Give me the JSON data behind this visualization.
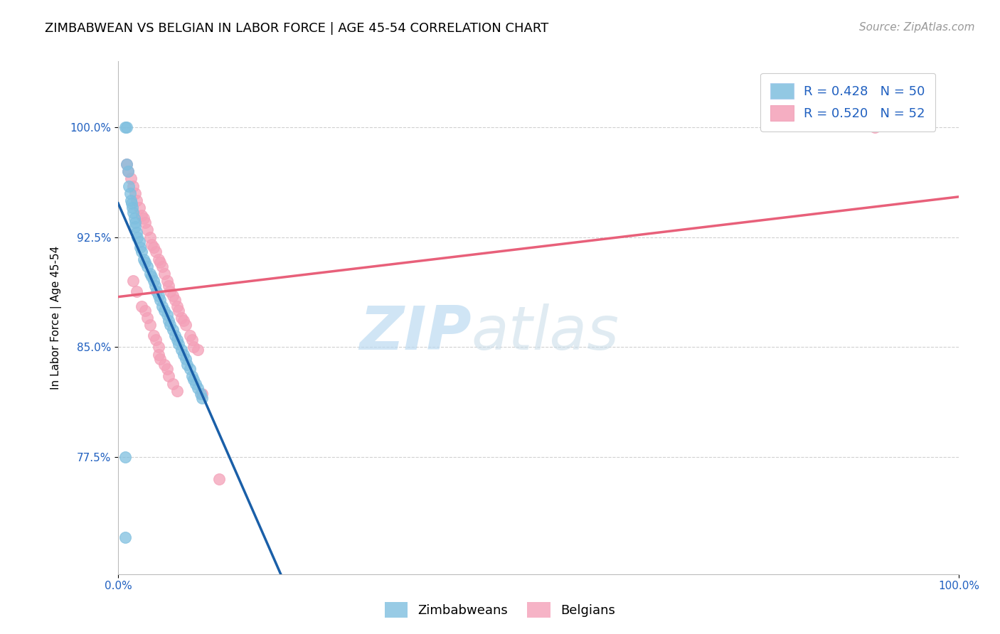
{
  "title": "ZIMBABWEAN VS BELGIAN IN LABOR FORCE | AGE 45-54 CORRELATION CHART",
  "source_text": "Source: ZipAtlas.com",
  "ylabel": "In Labor Force | Age 45-54",
  "x_tick_labels": [
    "0.0%",
    "100.0%"
  ],
  "y_tick_labels": [
    "77.5%",
    "85.0%",
    "92.5%",
    "100.0%"
  ],
  "xlim": [
    0.0,
    1.0
  ],
  "ylim": [
    0.695,
    1.045
  ],
  "y_ticks": [
    0.775,
    0.85,
    0.925,
    1.0
  ],
  "watermark_zip": "ZIP",
  "watermark_atlas": "atlas",
  "legend_r1": "R = 0.428",
  "legend_n1": "N = 50",
  "legend_r2": "R = 0.520",
  "legend_n2": "N = 52",
  "zim_color": "#7fbfdf",
  "bel_color": "#f4a0b8",
  "zim_line_color": "#1a5fa8",
  "bel_line_color": "#e8607a",
  "background_color": "#ffffff",
  "grid_color": "#d0d0d0",
  "zim_scatter_x": [
    0.008,
    0.01,
    0.01,
    0.012,
    0.013,
    0.014,
    0.015,
    0.016,
    0.017,
    0.018,
    0.019,
    0.02,
    0.02,
    0.022,
    0.023,
    0.025,
    0.026,
    0.028,
    0.03,
    0.032,
    0.035,
    0.038,
    0.04,
    0.042,
    0.044,
    0.046,
    0.048,
    0.05,
    0.052,
    0.055,
    0.058,
    0.06,
    0.062,
    0.065,
    0.068,
    0.07,
    0.072,
    0.075,
    0.078,
    0.08,
    0.082,
    0.085,
    0.088,
    0.09,
    0.092,
    0.095,
    0.098,
    0.1,
    0.008,
    0.008
  ],
  "zim_scatter_y": [
    1.0,
    1.0,
    0.975,
    0.97,
    0.96,
    0.955,
    0.95,
    0.948,
    0.945,
    0.942,
    0.938,
    0.935,
    0.932,
    0.928,
    0.925,
    0.922,
    0.918,
    0.915,
    0.91,
    0.908,
    0.905,
    0.9,
    0.898,
    0.895,
    0.892,
    0.888,
    0.885,
    0.882,
    0.878,
    0.875,
    0.872,
    0.868,
    0.865,
    0.862,
    0.858,
    0.855,
    0.852,
    0.848,
    0.845,
    0.842,
    0.838,
    0.835,
    0.83,
    0.828,
    0.825,
    0.822,
    0.818,
    0.815,
    0.775,
    0.72
  ],
  "bel_scatter_x": [
    0.01,
    0.012,
    0.015,
    0.018,
    0.02,
    0.022,
    0.025,
    0.028,
    0.03,
    0.032,
    0.035,
    0.038,
    0.04,
    0.042,
    0.045,
    0.048,
    0.05,
    0.052,
    0.055,
    0.058,
    0.06,
    0.062,
    0.065,
    0.068,
    0.07,
    0.072,
    0.075,
    0.078,
    0.08,
    0.085,
    0.088,
    0.09,
    0.095,
    0.018,
    0.022,
    0.028,
    0.032,
    0.035,
    0.038,
    0.042,
    0.045,
    0.048,
    0.048,
    0.05,
    0.055,
    0.058,
    0.06,
    0.065,
    0.07,
    0.1,
    0.12,
    0.9
  ],
  "bel_scatter_y": [
    0.975,
    0.97,
    0.965,
    0.96,
    0.955,
    0.95,
    0.945,
    0.94,
    0.938,
    0.935,
    0.93,
    0.925,
    0.92,
    0.918,
    0.915,
    0.91,
    0.908,
    0.905,
    0.9,
    0.895,
    0.892,
    0.888,
    0.885,
    0.882,
    0.878,
    0.875,
    0.87,
    0.868,
    0.865,
    0.858,
    0.855,
    0.85,
    0.848,
    0.895,
    0.888,
    0.878,
    0.875,
    0.87,
    0.865,
    0.858,
    0.855,
    0.85,
    0.845,
    0.842,
    0.838,
    0.835,
    0.83,
    0.825,
    0.82,
    0.818,
    0.76,
    1.0
  ],
  "title_fontsize": 13,
  "label_fontsize": 11,
  "tick_fontsize": 11,
  "legend_fontsize": 13,
  "source_fontsize": 11
}
